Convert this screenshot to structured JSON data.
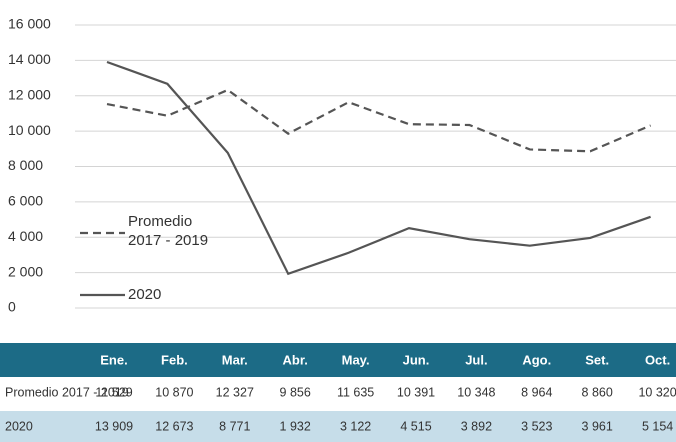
{
  "chart_data": {
    "type": "line",
    "categories": [
      "Ene.",
      "Feb.",
      "Mar.",
      "Abr.",
      "May.",
      "Jun.",
      "Jul.",
      "Ago.",
      "Set.",
      "Oct."
    ],
    "series": [
      {
        "name": "Promedio 2017 - 2019",
        "color": "#555555",
        "dashed": true,
        "values": [
          11529,
          10870,
          12327,
          9856,
          11635,
          10391,
          10348,
          8964,
          8860,
          10320
        ],
        "value_labels": [
          "11 529",
          "10 870",
          "12 327",
          "9 856",
          "11 635",
          "10 391",
          "10 348",
          "8 964",
          "8 860",
          "10 320"
        ]
      },
      {
        "name": "2020",
        "color": "#555555",
        "dashed": false,
        "values": [
          13909,
          12673,
          8771,
          1932,
          3122,
          4515,
          3892,
          3523,
          3961,
          5154
        ],
        "value_labels": [
          "13 909",
          "12 673",
          "8 771",
          "1 932",
          "3 122",
          "4 515",
          "3 892",
          "3 523",
          "3 961",
          "5 154"
        ]
      }
    ],
    "ylim": [
      0,
      16000
    ],
    "yticks": [
      0,
      {
        "value": 2000,
        "label": "2 000"
      },
      {
        "value": 4000,
        "label": "4 000"
      },
      {
        "value": 6000,
        "label": "6 000"
      },
      {
        "value": 8000,
        "label": "8 000"
      },
      {
        "value": 10000,
        "label": "10 000"
      },
      {
        "value": 12000,
        "label": "12 000"
      },
      {
        "value": 14000,
        "label": "14 000"
      },
      {
        "value": 16000,
        "label": "16 000"
      }
    ],
    "grid": true
  }
}
